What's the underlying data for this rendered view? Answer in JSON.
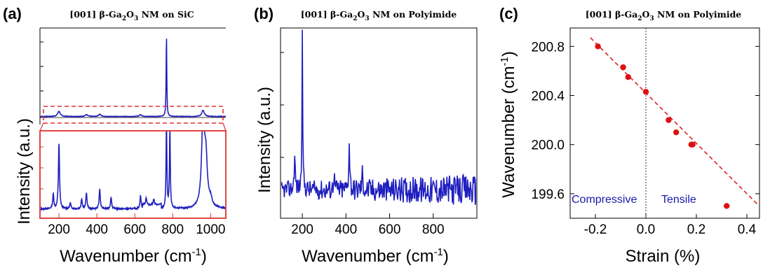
{
  "chart_data": [
    {
      "panel_label": "(a)",
      "type": "line",
      "title_parts": [
        "[001] β-Ga",
        "2",
        "O",
        "3",
        " NM on SiC"
      ],
      "xlabel_main": "Wavenumber (cm",
      "xlabel_sup": "-1",
      "xlabel_close": ")",
      "ylabel": "Intensity (a.u.)",
      "xlim": [
        100,
        1080
      ],
      "xticks": [
        "200",
        "400",
        "600",
        "800",
        "1000"
      ],
      "xtick_values": [
        200,
        400,
        600,
        800,
        1000
      ],
      "color": "#1f1fbf",
      "inset_color": "#e03030",
      "top_series": {
        "name": "",
        "ylim": [
          0,
          1
        ],
        "baseline": 0.06,
        "peaks": [
          [
            200,
            0.06
          ],
          [
            345,
            0.02
          ],
          [
            415,
            0.025
          ],
          [
            630,
            0.02
          ],
          [
            767,
            0.95
          ],
          [
            960,
            0.07
          ]
        ]
      },
      "bottom_series": {
        "name": "",
        "ylim": [
          0,
          1
        ],
        "baseline": 0.06,
        "peaks": [
          [
            170,
            0.2
          ],
          [
            200,
            0.9
          ],
          [
            260,
            0.08
          ],
          [
            320,
            0.14
          ],
          [
            345,
            0.22
          ],
          [
            415,
            0.27
          ],
          [
            475,
            0.16
          ],
          [
            630,
            0.18
          ],
          [
            660,
            0.1
          ],
          [
            700,
            0.08
          ],
          [
            767,
            1.2
          ],
          [
            785,
            1.1
          ],
          [
            960,
            1.2
          ],
          [
            975,
            0.6
          ],
          [
            1000,
            0.1
          ]
        ]
      }
    },
    {
      "panel_label": "(b)",
      "type": "line",
      "title_parts": [
        "[001] β-Ga",
        "2",
        "O",
        "3",
        " NM on Polyimide"
      ],
      "xlabel_main": "Wavenumber (cm",
      "xlabel_sup": "-1",
      "xlabel_close": ")",
      "ylabel": "Intensity (a.u.)",
      "xlim": [
        100,
        1000
      ],
      "xticks": [
        "200",
        "400",
        "600",
        "800"
      ],
      "xtick_values": [
        200,
        400,
        600,
        800
      ],
      "color": "#1f1fbf",
      "series": {
        "name": "",
        "ylim": [
          0,
          1
        ],
        "baseline": 0.1,
        "noise": 0.05,
        "peaks": [
          [
            165,
            0.2
          ],
          [
            200,
            0.92
          ],
          [
            345,
            0.1
          ],
          [
            415,
            0.28
          ],
          [
            475,
            0.1
          ]
        ]
      }
    },
    {
      "panel_label": "(c)",
      "type": "scatter",
      "title_parts": [
        "[001] β-Ga",
        "2",
        "O",
        "3",
        " NM on Polyimide"
      ],
      "xlabel": "Strain (%)",
      "ylabel_main": "Wavenumber (cm",
      "ylabel_sup": "-1",
      "ylabel_close": ")",
      "xlim": [
        -0.3,
        0.45
      ],
      "ylim": [
        199.4,
        200.95
      ],
      "xticks": [
        "-0.2",
        "0.0",
        "0.2",
        "0.4"
      ],
      "xtick_values": [
        -0.2,
        0,
        0.2,
        0.4
      ],
      "yticks": [
        "199.6",
        "200.0",
        "200.4",
        "200.8"
      ],
      "ytick_values": [
        199.6,
        200.0,
        200.4,
        200.8
      ],
      "points": [
        {
          "x": -0.19,
          "y": 200.8
        },
        {
          "x": -0.09,
          "y": 200.63
        },
        {
          "x": -0.07,
          "y": 200.55
        },
        {
          "x": 0.0,
          "y": 200.43
        },
        {
          "x": 0.09,
          "y": 200.2
        },
        {
          "x": 0.12,
          "y": 200.1
        },
        {
          "x": 0.18,
          "y": 200.0
        },
        {
          "x": 0.185,
          "y": 200.0
        },
        {
          "x": 0.32,
          "y": 199.5
        }
      ],
      "fit": {
        "slope": -2.05,
        "intercept": 200.42
      },
      "dashed_vline_x": 0,
      "annotations": {
        "left": "Compressive",
        "right": "Tensile"
      },
      "point_color": "#dd1111",
      "fit_color": "#dd2222",
      "annot_color": "#1a1aaa"
    }
  ]
}
